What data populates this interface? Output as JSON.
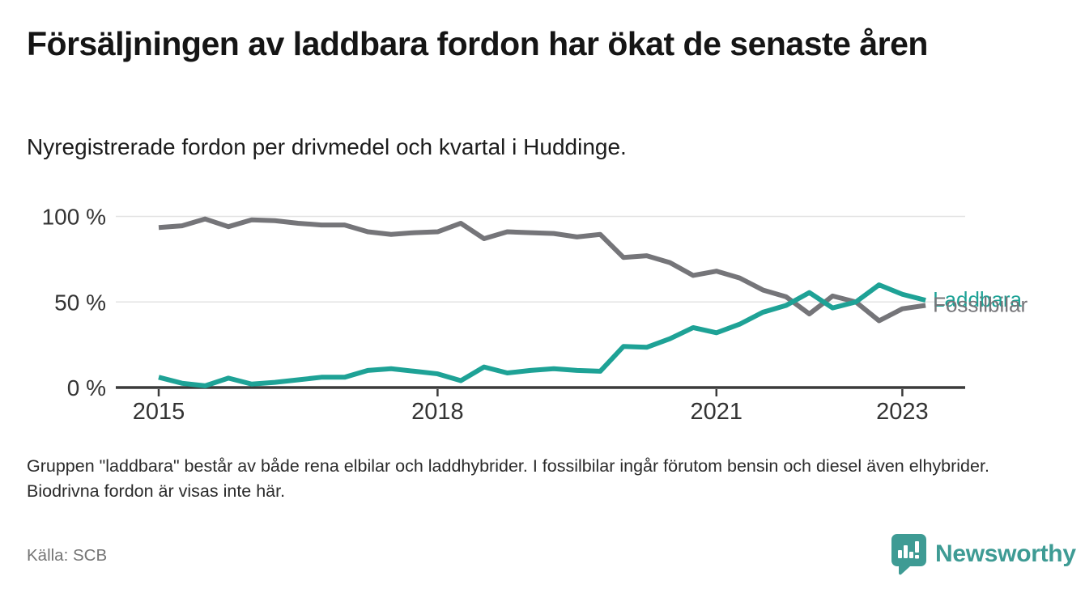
{
  "header": {
    "title": "Försäljningen av laddbara fordon har ökat de senaste åren",
    "subtitle": "Nyregistrerade fordon per drivmedel och kvartal i Huddinge."
  },
  "chart_data": {
    "type": "line",
    "title": "",
    "xlabel": "",
    "ylabel": "",
    "unit": "%",
    "ylim": [
      0,
      100
    ],
    "grid": "horizontal",
    "legend_position": "line-end-labels",
    "x": [
      "2015 Q1",
      "2015 Q2",
      "2015 Q3",
      "2015 Q4",
      "2016 Q1",
      "2016 Q2",
      "2016 Q3",
      "2016 Q4",
      "2017 Q1",
      "2017 Q2",
      "2017 Q3",
      "2017 Q4",
      "2018 Q1",
      "2018 Q2",
      "2018 Q3",
      "2018 Q4",
      "2019 Q1",
      "2019 Q2",
      "2019 Q3",
      "2019 Q4",
      "2020 Q1",
      "2020 Q2",
      "2020 Q3",
      "2020 Q4",
      "2021 Q1",
      "2021 Q2",
      "2021 Q3",
      "2021 Q4",
      "2022 Q1",
      "2022 Q2",
      "2022 Q3",
      "2022 Q4",
      "2023 Q1",
      "2023 Q2"
    ],
    "y_ticks": [
      {
        "value": 0,
        "label": "0 %"
      },
      {
        "value": 50,
        "label": "50 %"
      },
      {
        "value": 100,
        "label": "100 %"
      }
    ],
    "x_ticks": [
      {
        "index": 0,
        "label": "2015"
      },
      {
        "index": 12,
        "label": "2018"
      },
      {
        "index": 24,
        "label": "2021"
      },
      {
        "index": 32,
        "label": "2023"
      }
    ],
    "series": [
      {
        "name": "Laddbara",
        "color": "#1ea296",
        "values": [
          6,
          2.5,
          1,
          5.5,
          2,
          3,
          4.5,
          6,
          6,
          10,
          11,
          9.5,
          8,
          4,
          12,
          8.5,
          10,
          11,
          10,
          9.5,
          24,
          23.5,
          28.5,
          35,
          32,
          37,
          44,
          48,
          55.5,
          46.5,
          50,
          60,
          54.5,
          51
        ]
      },
      {
        "name": "Fossilbilar",
        "color": "#757579",
        "values": [
          93.5,
          94.5,
          98.5,
          94,
          98,
          97.5,
          96,
          95,
          95,
          91,
          89.5,
          90.5,
          91,
          96,
          87,
          91,
          90.5,
          90,
          88,
          89.5,
          76,
          77,
          73,
          65.5,
          68,
          64,
          57,
          53,
          43,
          53.5,
          50,
          39,
          46,
          48
        ]
      }
    ],
    "axis_color": "#3b3b3b",
    "gridline_color": "#e3e3e3",
    "tick_label_color": "#333333"
  },
  "footer": {
    "note": "Gruppen \"laddbara\" består av både rena elbilar och laddhybrider. I fossilbilar ingår förutom bensin och diesel även elhybrider. Biodrivna fordon är visas inte här.",
    "source": "Källa: SCB"
  },
  "branding": {
    "logo_text": "Newsworthy",
    "logo_color": "#3e9b94"
  }
}
